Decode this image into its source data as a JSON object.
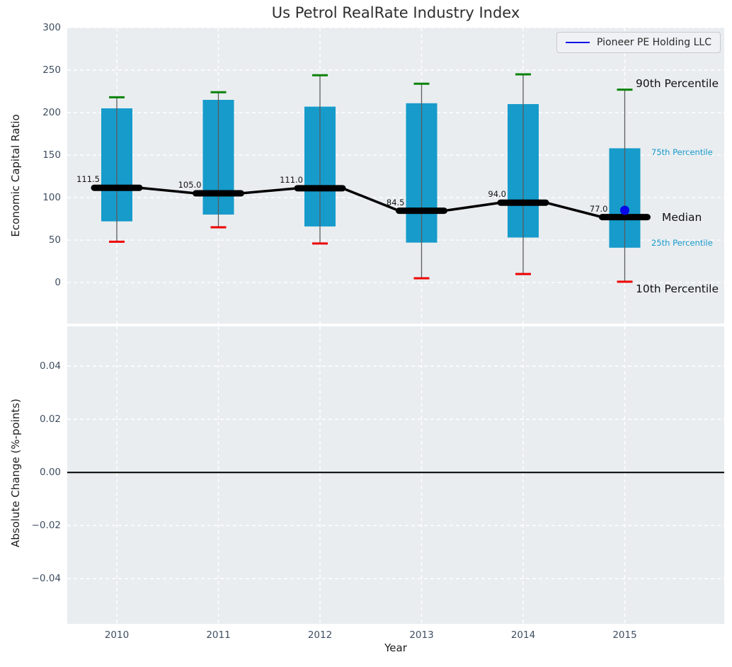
{
  "figure": {
    "title": "Us Petrol RealRate Industry Index",
    "xlabel": "Year"
  },
  "legend": {
    "label": "Pioneer PE Holding LLC",
    "line_color": "#0707e8"
  },
  "chart_data": [
    {
      "type": "boxplot",
      "panel": "top",
      "ylabel": "Economic Capital Ratio",
      "ylim": [
        -48.3,
        300
      ],
      "yticks": [
        0,
        50,
        100,
        150,
        200,
        250,
        300
      ],
      "grid": "white-dashed",
      "categories": [
        "2010",
        "2011",
        "2012",
        "2013",
        "2014",
        "2015"
      ],
      "boxes": [
        {
          "year": "2010",
          "p10": 48,
          "p25": 72,
          "median": 111.5,
          "p75": 205,
          "p90": 218,
          "median_label": "111.5"
        },
        {
          "year": "2011",
          "p10": 65,
          "p25": 80,
          "median": 105.0,
          "p75": 215,
          "p90": 224,
          "median_label": "105.0"
        },
        {
          "year": "2012",
          "p10": 46,
          "p25": 66,
          "median": 111.0,
          "p75": 207,
          "p90": 244,
          "median_label": "111.0"
        },
        {
          "year": "2013",
          "p10": 5,
          "p25": 47,
          "median": 84.5,
          "p75": 211,
          "p90": 234,
          "median_label": "84.5"
        },
        {
          "year": "2014",
          "p10": 10,
          "p25": 53,
          "median": 94.0,
          "p75": 210,
          "p90": 245,
          "median_label": "94.0"
        },
        {
          "year": "2015",
          "p10": 1,
          "p25": 41,
          "median": 77.0,
          "p75": 158,
          "p90": 227,
          "median_label": "77.0"
        }
      ],
      "company_series": {
        "name": "Pioneer PE Holding LLC",
        "points": [
          {
            "year": "2015",
            "value": 85
          }
        ],
        "color": "#0707e8"
      },
      "percentile_labels": {
        "p90": "90th Percentile",
        "p75": "75th Percentile",
        "median": "Median",
        "p25": "25th Percentile",
        "p10": "10th Percentile"
      },
      "colors": {
        "box": "#169bcb",
        "p90_cap": "#0a830a",
        "p10_cap": "#ec0000",
        "median_line": "#000000",
        "whisker": "#5c5c5c",
        "panel_background": "#e9edf0"
      }
    },
    {
      "type": "line",
      "panel": "bottom",
      "ylabel": "Absolute Change (%-points)",
      "xlabel": "Year",
      "ylim": [
        -0.057,
        0.055
      ],
      "yticks": [
        0.04,
        0.02,
        0.0,
        -0.02,
        -0.04
      ],
      "grid": "white-dashed",
      "categories": [
        "2010",
        "2011",
        "2012",
        "2013",
        "2014",
        "2015"
      ],
      "series": [],
      "zero_line": true,
      "zero_line_color": "#000000"
    }
  ]
}
